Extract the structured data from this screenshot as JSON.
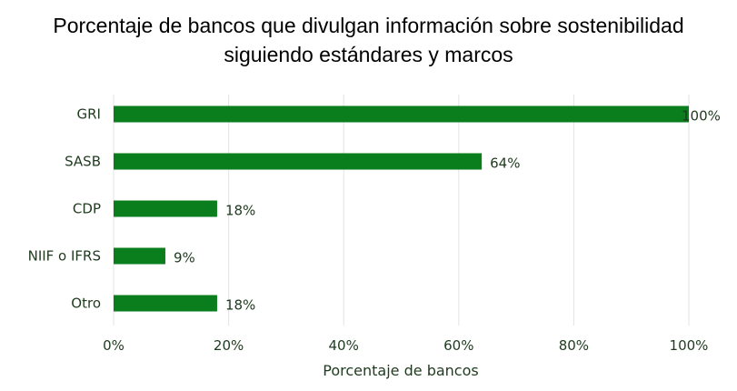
{
  "chart_data": {
    "type": "bar",
    "orientation": "horizontal",
    "title_lines": [
      "Porcentaje de bancos que divulgan información sobre sostenibilidad",
      "siguiendo estándares y marcos"
    ],
    "categories": [
      "GRI",
      "SASB",
      "CDP",
      "NIIF o IFRS",
      "Otro"
    ],
    "values": [
      100,
      64,
      18,
      9,
      18
    ],
    "value_labels": [
      "100%",
      "64%",
      "18%",
      "9%",
      "18%"
    ],
    "xlabel": "Porcentaje de bancos",
    "ylabel": "",
    "xlim": [
      0,
      100
    ],
    "x_ticks": [
      0,
      20,
      40,
      60,
      80,
      100
    ],
    "x_tick_labels": [
      "0%",
      "20%",
      "40%",
      "60%",
      "80%",
      "100%"
    ],
    "grid": "vertical",
    "legend": "none",
    "colors": {
      "bar": "#0a7d1d",
      "grid": "#e3e3e3",
      "text": "#1f3b1f"
    }
  }
}
